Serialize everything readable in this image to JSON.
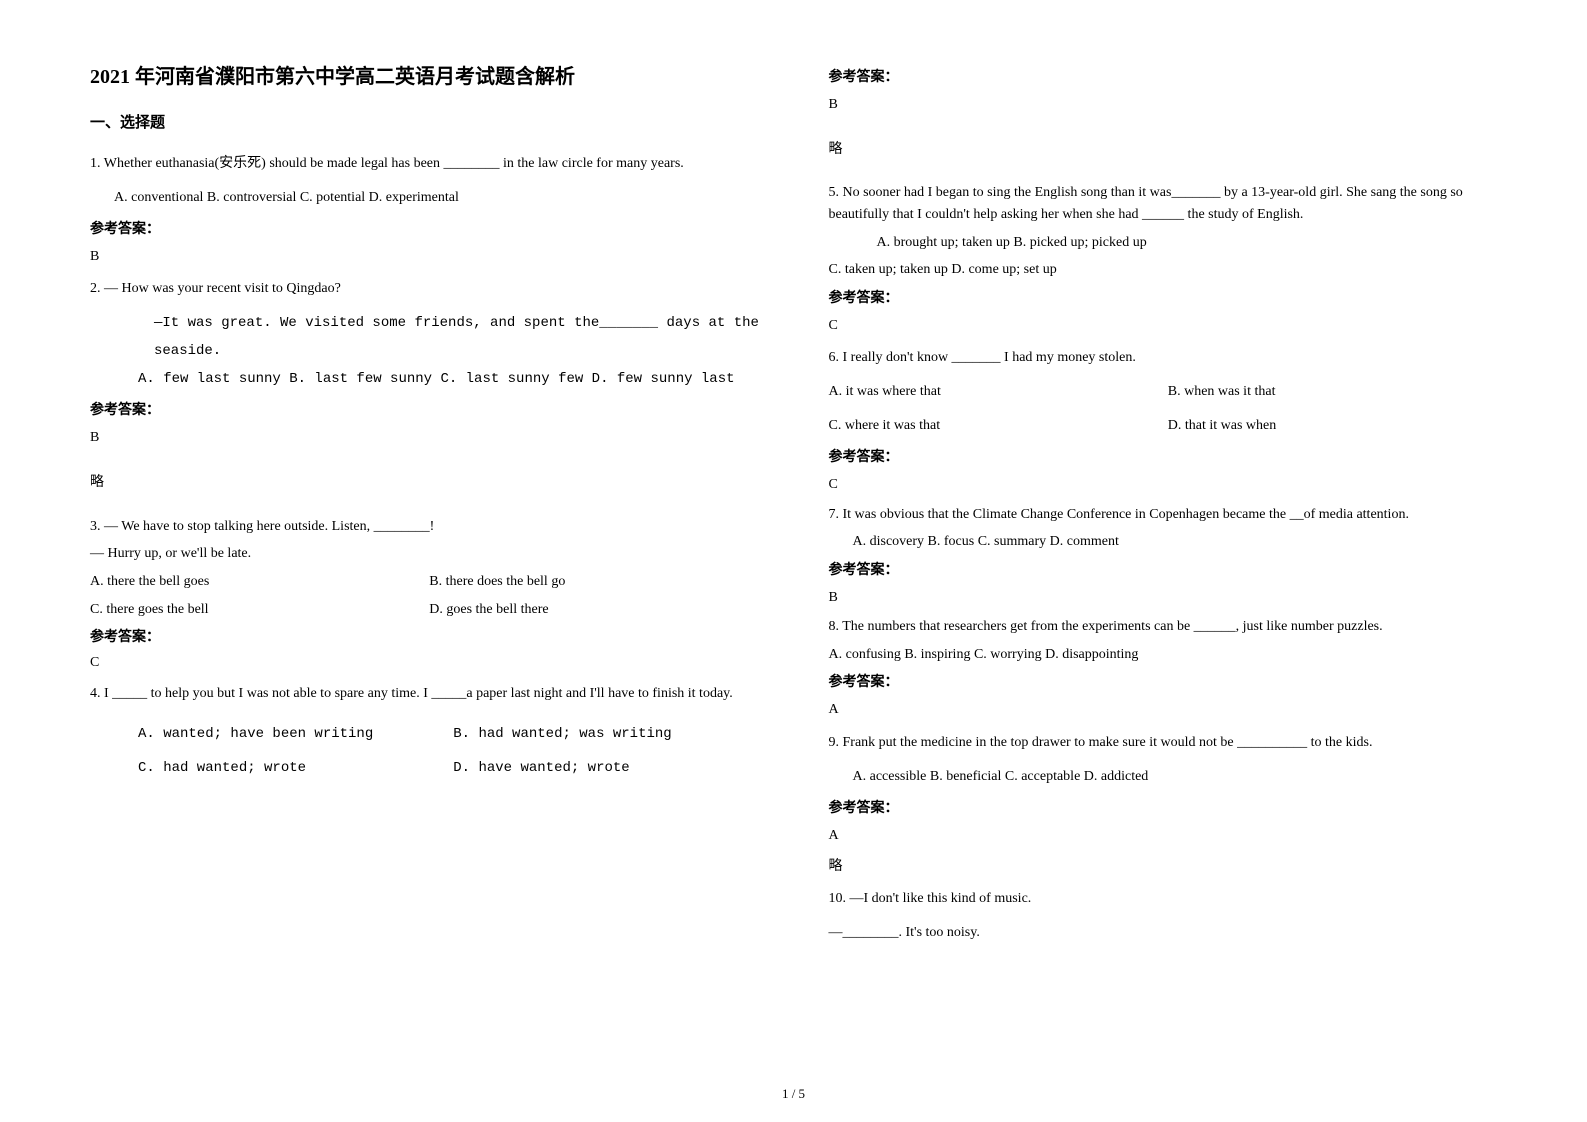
{
  "title": "2021 年河南省濮阳市第六中学高二英语月考试题含解析",
  "sectionHeader": "一、选择题",
  "ansLabel": "参考答案：",
  "omit": "略",
  "footer": "1 / 5",
  "q1": {
    "stem": "1. Whether euthanasia(安乐死) should be made legal has been ________ in the law circle for many years.",
    "opts": "A. conventional   B. controversial  C. potential  D. experimental",
    "ans": "B"
  },
  "q2": {
    "stem": "2. — How was your recent visit to Qingdao?",
    "line2": "—It was great. We visited some friends, and spent the_______ days at the seaside.",
    "opts": "A. few last sunny     B. last few sunny           C. last sunny few      D. few sunny last",
    "ans": "B"
  },
  "q3": {
    "line1": "3. — We have to stop talking here outside. Listen, ________!",
    "line2": "— Hurry up, or we'll be late.",
    "optsA": "A. there the bell goes",
    "optsB": "B. there does the bell go",
    "optsC": "C. there goes the bell",
    "optsD": "D. goes the bell there",
    "ans": "C"
  },
  "q4": {
    "stem": "4. I _____ to help you but I was not able to spare any time. I _____a paper last night and I'll have to finish it today.",
    "optsA": "A. wanted; have been writing",
    "optsB": "B. had wanted; was writing",
    "optsC": "C. had wanted; wrote",
    "optsD": "D. have wanted; wrote",
    "ans": "B"
  },
  "q5": {
    "stem": "5. No sooner had I began to sing the English song than it was_______ by a 13-year-old girl. She sang the song so beautifully that I couldn't help asking her when she had ______ the study of English.",
    "optsL1": "A. brought up; taken up    B. picked up; picked up",
    "optsL2": "C. taken up; taken up    D. come up; set up",
    "ans": "C"
  },
  "q6": {
    "stem": "6. I really don't know _______ I had my money stolen.",
    "optsA": "A. it was where that",
    "optsB": "B. when was it that",
    "optsC": "C. where it was that",
    "optsD": "D. that it was when",
    "ans": "C"
  },
  "q7": {
    "stem": "7. It was obvious that the Climate Change Conference in Copenhagen became the __of media attention.",
    "opts": "A. discovery     B. focus     C. summary    D. comment",
    "ans": "B"
  },
  "q8": {
    "stem": "8. The numbers that researchers get from the experiments can be ______, just like number puzzles.",
    "opts": "A. confusing   B. inspiring   C. worrying    D. disappointing",
    "ans": "A"
  },
  "q9": {
    "stem": "9. Frank put the medicine in the top drawer to make sure it would not be __________ to the kids.",
    "opts": "A. accessible        B. beneficial      C. acceptable       D. addicted",
    "ans": "A"
  },
  "q10": {
    "line1": "10. —I don't like this kind of music.",
    "line2": "—________. It's too noisy."
  }
}
